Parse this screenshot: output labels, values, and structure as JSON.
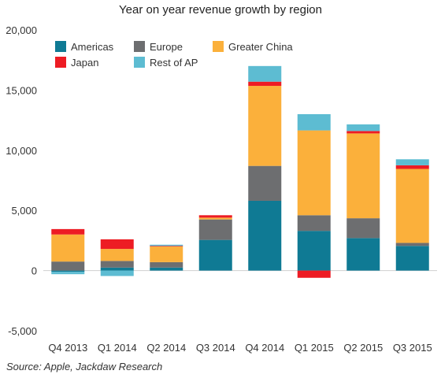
{
  "chart_data": {
    "type": "bar",
    "stacked": true,
    "title": "Year on year revenue growth by region",
    "categories": [
      "Q4 2013",
      "Q1 2014",
      "Q2 2014",
      "Q3 2014",
      "Q4 2014",
      "Q1 2015",
      "Q2 2015",
      "Q3 2015"
    ],
    "series": [
      {
        "name": "Americas",
        "color": "#0f7a94",
        "values": [
          -100,
          250,
          250,
          2550,
          5800,
          3300,
          2700,
          2050
        ]
      },
      {
        "name": "Europe",
        "color": "#6d6e70",
        "values": [
          750,
          550,
          450,
          1700,
          2900,
          1300,
          1650,
          250
        ]
      },
      {
        "name": "Greater China",
        "color": "#fbb03b",
        "values": [
          2250,
          1000,
          1300,
          150,
          6650,
          7050,
          7050,
          6150
        ]
      },
      {
        "name": "Japan",
        "color": "#ed1c24",
        "values": [
          450,
          800,
          50,
          200,
          350,
          -600,
          200,
          300
        ]
      },
      {
        "name": "Rest of AP",
        "color": "#5dbcd2",
        "values": [
          -200,
          -450,
          100,
          0,
          1300,
          1350,
          550,
          500
        ]
      }
    ],
    "ylim": [
      -5000,
      20000
    ],
    "yticks": [
      "-5,000",
      "0",
      "5,000",
      "10,000",
      "15,000",
      "20,000"
    ],
    "ytick_values": [
      -5000,
      0,
      5000,
      10000,
      15000,
      20000
    ],
    "grid": false,
    "legend_position": "top-left",
    "source": "Source: Apple, Jackdaw Research"
  }
}
